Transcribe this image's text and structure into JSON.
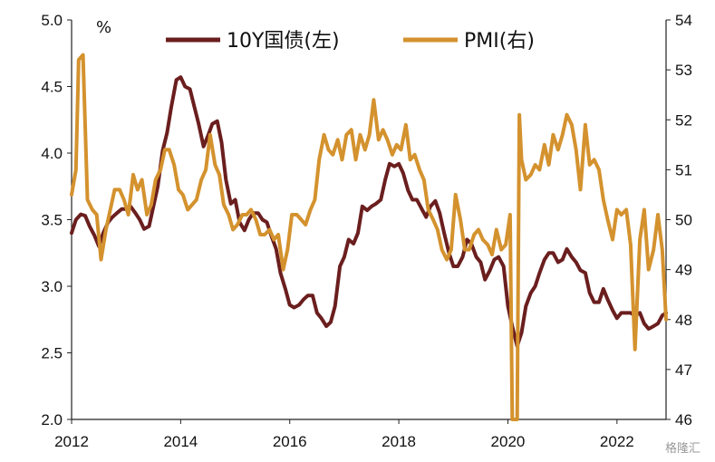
{
  "chart_data": {
    "type": "line",
    "left_unit": "%",
    "x_ticks": [
      "2012",
      "2014",
      "2016",
      "2018",
      "2020",
      "2022"
    ],
    "y_left_ticks": [
      "2.0",
      "2.5",
      "3.0",
      "3.5",
      "4.0",
      "4.5",
      "5.0"
    ],
    "y_right_ticks": [
      "46",
      "47",
      "48",
      "49",
      "50",
      "51",
      "52",
      "53",
      "54"
    ],
    "ylim_left": [
      2.0,
      5.0
    ],
    "ylim_right": [
      46,
      54
    ],
    "xlim": [
      2012.0,
      2022.9
    ],
    "grid": false,
    "legend_position": "top",
    "watermark": "格隆汇",
    "series": [
      {
        "name": "10Y国债(左)",
        "axis": "left",
        "color": "#6b1e1e",
        "points": [
          [
            2012.0,
            3.4
          ],
          [
            2012.08,
            3.5
          ],
          [
            2012.17,
            3.54
          ],
          [
            2012.25,
            3.53
          ],
          [
            2012.33,
            3.45
          ],
          [
            2012.42,
            3.38
          ],
          [
            2012.5,
            3.3
          ],
          [
            2012.58,
            3.4
          ],
          [
            2012.67,
            3.48
          ],
          [
            2012.75,
            3.52
          ],
          [
            2012.83,
            3.55
          ],
          [
            2012.92,
            3.58
          ],
          [
            2013.0,
            3.58
          ],
          [
            2013.08,
            3.6
          ],
          [
            2013.17,
            3.55
          ],
          [
            2013.25,
            3.5
          ],
          [
            2013.33,
            3.43
          ],
          [
            2013.42,
            3.45
          ],
          [
            2013.5,
            3.6
          ],
          [
            2013.58,
            3.75
          ],
          [
            2013.67,
            4.02
          ],
          [
            2013.75,
            4.15
          ],
          [
            2013.83,
            4.35
          ],
          [
            2013.92,
            4.55
          ],
          [
            2014.0,
            4.57
          ],
          [
            2014.08,
            4.5
          ],
          [
            2014.17,
            4.48
          ],
          [
            2014.25,
            4.35
          ],
          [
            2014.33,
            4.22
          ],
          [
            2014.42,
            4.05
          ],
          [
            2014.5,
            4.13
          ],
          [
            2014.58,
            4.22
          ],
          [
            2014.67,
            4.24
          ],
          [
            2014.75,
            4.08
          ],
          [
            2014.83,
            3.8
          ],
          [
            2014.92,
            3.62
          ],
          [
            2015.0,
            3.65
          ],
          [
            2015.08,
            3.48
          ],
          [
            2015.17,
            3.42
          ],
          [
            2015.25,
            3.5
          ],
          [
            2015.33,
            3.55
          ],
          [
            2015.42,
            3.55
          ],
          [
            2015.5,
            3.5
          ],
          [
            2015.58,
            3.48
          ],
          [
            2015.67,
            3.37
          ],
          [
            2015.75,
            3.28
          ],
          [
            2015.83,
            3.1
          ],
          [
            2015.92,
            2.98
          ],
          [
            2016.0,
            2.86
          ],
          [
            2016.08,
            2.84
          ],
          [
            2016.17,
            2.86
          ],
          [
            2016.25,
            2.9
          ],
          [
            2016.33,
            2.93
          ],
          [
            2016.42,
            2.93
          ],
          [
            2016.5,
            2.8
          ],
          [
            2016.58,
            2.76
          ],
          [
            2016.67,
            2.7
          ],
          [
            2016.75,
            2.73
          ],
          [
            2016.83,
            2.85
          ],
          [
            2016.92,
            3.15
          ],
          [
            2017.0,
            3.22
          ],
          [
            2017.08,
            3.35
          ],
          [
            2017.17,
            3.32
          ],
          [
            2017.25,
            3.4
          ],
          [
            2017.33,
            3.6
          ],
          [
            2017.42,
            3.57
          ],
          [
            2017.5,
            3.6
          ],
          [
            2017.58,
            3.62
          ],
          [
            2017.67,
            3.65
          ],
          [
            2017.75,
            3.8
          ],
          [
            2017.83,
            3.92
          ],
          [
            2017.92,
            3.9
          ],
          [
            2018.0,
            3.92
          ],
          [
            2018.08,
            3.85
          ],
          [
            2018.17,
            3.72
          ],
          [
            2018.25,
            3.65
          ],
          [
            2018.33,
            3.65
          ],
          [
            2018.42,
            3.58
          ],
          [
            2018.5,
            3.52
          ],
          [
            2018.58,
            3.6
          ],
          [
            2018.67,
            3.64
          ],
          [
            2018.75,
            3.55
          ],
          [
            2018.83,
            3.4
          ],
          [
            2018.92,
            3.25
          ],
          [
            2019.0,
            3.15
          ],
          [
            2019.08,
            3.15
          ],
          [
            2019.17,
            3.22
          ],
          [
            2019.25,
            3.35
          ],
          [
            2019.33,
            3.32
          ],
          [
            2019.42,
            3.22
          ],
          [
            2019.5,
            3.18
          ],
          [
            2019.58,
            3.05
          ],
          [
            2019.67,
            3.12
          ],
          [
            2019.75,
            3.2
          ],
          [
            2019.83,
            3.22
          ],
          [
            2019.92,
            3.15
          ],
          [
            2020.0,
            2.85
          ],
          [
            2020.08,
            2.7
          ],
          [
            2020.17,
            2.55
          ],
          [
            2020.25,
            2.65
          ],
          [
            2020.33,
            2.85
          ],
          [
            2020.42,
            2.95
          ],
          [
            2020.5,
            3.0
          ],
          [
            2020.58,
            3.1
          ],
          [
            2020.67,
            3.2
          ],
          [
            2020.75,
            3.25
          ],
          [
            2020.83,
            3.25
          ],
          [
            2020.92,
            3.18
          ],
          [
            2021.0,
            3.2
          ],
          [
            2021.08,
            3.28
          ],
          [
            2021.17,
            3.22
          ],
          [
            2021.25,
            3.18
          ],
          [
            2021.33,
            3.12
          ],
          [
            2021.42,
            3.1
          ],
          [
            2021.5,
            2.95
          ],
          [
            2021.58,
            2.88
          ],
          [
            2021.67,
            2.88
          ],
          [
            2021.75,
            2.98
          ],
          [
            2021.83,
            2.9
          ],
          [
            2021.92,
            2.82
          ],
          [
            2022.0,
            2.76
          ],
          [
            2022.08,
            2.8
          ],
          [
            2022.17,
            2.8
          ],
          [
            2022.25,
            2.8
          ],
          [
            2022.33,
            2.78
          ],
          [
            2022.42,
            2.8
          ],
          [
            2022.5,
            2.72
          ],
          [
            2022.58,
            2.68
          ],
          [
            2022.67,
            2.7
          ],
          [
            2022.75,
            2.72
          ],
          [
            2022.83,
            2.78
          ],
          [
            2022.9,
            2.8
          ]
        ]
      },
      {
        "name": "PMI(右)",
        "axis": "right",
        "color": "#d4922e",
        "points": [
          [
            2012.0,
            50.5
          ],
          [
            2012.08,
            51.0
          ],
          [
            2012.13,
            53.2
          ],
          [
            2012.21,
            53.3
          ],
          [
            2012.29,
            50.4
          ],
          [
            2012.38,
            50.2
          ],
          [
            2012.46,
            50.1
          ],
          [
            2012.54,
            49.2
          ],
          [
            2012.63,
            49.8
          ],
          [
            2012.71,
            50.2
          ],
          [
            2012.79,
            50.6
          ],
          [
            2012.88,
            50.6
          ],
          [
            2012.96,
            50.4
          ],
          [
            2013.04,
            50.1
          ],
          [
            2013.13,
            50.9
          ],
          [
            2013.21,
            50.6
          ],
          [
            2013.29,
            50.8
          ],
          [
            2013.38,
            50.1
          ],
          [
            2013.46,
            50.3
          ],
          [
            2013.54,
            50.8
          ],
          [
            2013.63,
            51.0
          ],
          [
            2013.71,
            51.4
          ],
          [
            2013.79,
            51.4
          ],
          [
            2013.88,
            51.1
          ],
          [
            2013.96,
            50.6
          ],
          [
            2014.04,
            50.5
          ],
          [
            2014.13,
            50.2
          ],
          [
            2014.21,
            50.3
          ],
          [
            2014.29,
            50.4
          ],
          [
            2014.38,
            50.8
          ],
          [
            2014.46,
            51.0
          ],
          [
            2014.54,
            51.7
          ],
          [
            2014.63,
            51.1
          ],
          [
            2014.71,
            50.9
          ],
          [
            2014.79,
            50.3
          ],
          [
            2014.88,
            50.1
          ],
          [
            2014.96,
            49.8
          ],
          [
            2015.04,
            49.9
          ],
          [
            2015.13,
            50.1
          ],
          [
            2015.21,
            50.1
          ],
          [
            2015.29,
            50.2
          ],
          [
            2015.38,
            50.0
          ],
          [
            2015.46,
            49.7
          ],
          [
            2015.54,
            49.7
          ],
          [
            2015.63,
            49.8
          ],
          [
            2015.71,
            49.6
          ],
          [
            2015.79,
            49.7
          ],
          [
            2015.88,
            49.0
          ],
          [
            2015.96,
            49.4
          ],
          [
            2016.04,
            50.1
          ],
          [
            2016.13,
            50.1
          ],
          [
            2016.21,
            50.0
          ],
          [
            2016.29,
            49.9
          ],
          [
            2016.38,
            50.2
          ],
          [
            2016.46,
            50.4
          ],
          [
            2016.54,
            51.2
          ],
          [
            2016.63,
            51.7
          ],
          [
            2016.71,
            51.4
          ],
          [
            2016.79,
            51.3
          ],
          [
            2016.88,
            51.6
          ],
          [
            2016.96,
            51.2
          ],
          [
            2017.04,
            51.7
          ],
          [
            2017.13,
            51.8
          ],
          [
            2017.21,
            51.2
          ],
          [
            2017.29,
            51.7
          ],
          [
            2017.38,
            51.4
          ],
          [
            2017.46,
            51.7
          ],
          [
            2017.54,
            52.4
          ],
          [
            2017.63,
            51.6
          ],
          [
            2017.71,
            51.8
          ],
          [
            2017.79,
            51.6
          ],
          [
            2017.88,
            51.3
          ],
          [
            2017.96,
            51.5
          ],
          [
            2018.04,
            51.4
          ],
          [
            2018.13,
            51.9
          ],
          [
            2018.21,
            51.2
          ],
          [
            2018.29,
            51.3
          ],
          [
            2018.38,
            51.0
          ],
          [
            2018.46,
            50.8
          ],
          [
            2018.54,
            50.2
          ],
          [
            2018.63,
            50.0
          ],
          [
            2018.71,
            49.8
          ],
          [
            2018.79,
            49.4
          ],
          [
            2018.88,
            49.2
          ],
          [
            2018.96,
            49.4
          ],
          [
            2019.04,
            50.5
          ],
          [
            2019.13,
            50.0
          ],
          [
            2019.21,
            49.4
          ],
          [
            2019.29,
            49.4
          ],
          [
            2019.38,
            49.7
          ],
          [
            2019.46,
            49.8
          ],
          [
            2019.54,
            49.6
          ],
          [
            2019.63,
            49.5
          ],
          [
            2019.71,
            49.3
          ],
          [
            2019.79,
            49.8
          ],
          [
            2019.88,
            49.4
          ],
          [
            2019.96,
            49.5
          ],
          [
            2020.04,
            50.1
          ],
          [
            2020.08,
            46.0
          ],
          [
            2020.13,
            46.0
          ],
          [
            2020.17,
            46.0
          ],
          [
            2020.21,
            52.1
          ],
          [
            2020.25,
            51.2
          ],
          [
            2020.33,
            50.8
          ],
          [
            2020.42,
            50.9
          ],
          [
            2020.5,
            51.1
          ],
          [
            2020.58,
            51.0
          ],
          [
            2020.67,
            51.5
          ],
          [
            2020.75,
            51.1
          ],
          [
            2020.83,
            51.7
          ],
          [
            2020.92,
            51.4
          ],
          [
            2021.0,
            51.7
          ],
          [
            2021.08,
            52.1
          ],
          [
            2021.17,
            51.9
          ],
          [
            2021.25,
            51.4
          ],
          [
            2021.33,
            50.6
          ],
          [
            2021.42,
            51.9
          ],
          [
            2021.5,
            51.1
          ],
          [
            2021.58,
            51.2
          ],
          [
            2021.67,
            51.0
          ],
          [
            2021.75,
            50.4
          ],
          [
            2021.83,
            50.0
          ],
          [
            2021.92,
            49.6
          ],
          [
            2022.0,
            50.2
          ],
          [
            2022.08,
            50.1
          ],
          [
            2022.17,
            50.2
          ],
          [
            2022.25,
            49.5
          ],
          [
            2022.33,
            47.4
          ],
          [
            2022.42,
            49.6
          ],
          [
            2022.5,
            50.2
          ],
          [
            2022.58,
            49.0
          ],
          [
            2022.67,
            49.4
          ],
          [
            2022.75,
            50.1
          ],
          [
            2022.83,
            49.4
          ],
          [
            2022.9,
            48.0
          ]
        ]
      }
    ]
  }
}
